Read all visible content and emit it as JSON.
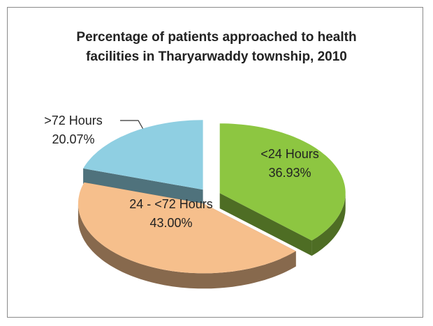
{
  "chart_data": {
    "type": "pie",
    "title": "Percentage of patients approached to health facilities in Tharyarwaddy township, 2010",
    "categories": [
      "<24 Hours",
      "24 - <72 Hours",
      ">72 Hours"
    ],
    "values": [
      36.93,
      43.0,
      20.07
    ],
    "value_labels": [
      "36.93%",
      "43.00%",
      "20.07%"
    ],
    "colors": [
      "#8dc641",
      "#f6bf8c",
      "#8fcfe2"
    ]
  }
}
